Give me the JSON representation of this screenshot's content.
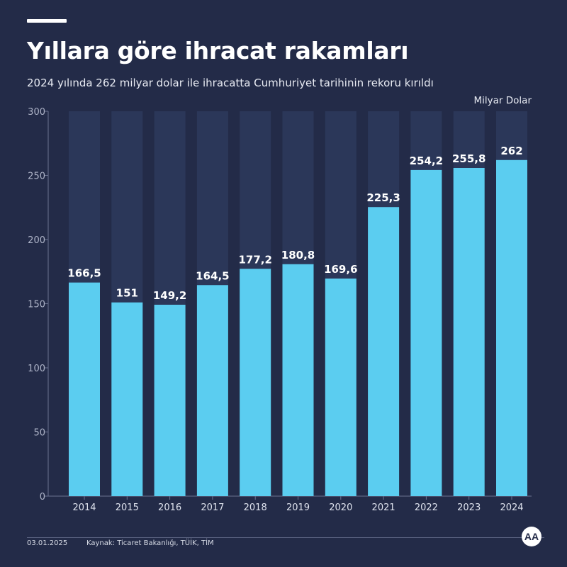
{
  "header": {
    "title": "Yıllara göre ihracat rakamları",
    "subtitle": "2024 yılında 262 milyar dolar ile ihracatta Cumhuriyet tarihinin rekoru kırıldı",
    "unit": "Milyar Dolar"
  },
  "footer": {
    "date": "03.01.2025",
    "source": "Kaynak: Ticaret Bakanlığı, TÜİK, TİM",
    "logo_text": "AA"
  },
  "colors": {
    "background": "#232b48",
    "bar": "#5bcdf0",
    "column_band": "#2b3759"
  },
  "chart_data": {
    "type": "bar",
    "categories": [
      "2014",
      "2015",
      "2016",
      "2017",
      "2018",
      "2019",
      "2020",
      "2021",
      "2022",
      "2023",
      "2024"
    ],
    "values": [
      166.5,
      151,
      149.2,
      164.5,
      177.2,
      180.8,
      169.6,
      225.3,
      254.2,
      255.8,
      262
    ],
    "value_labels": [
      "166,5",
      "151",
      "149,2",
      "164,5",
      "177,2",
      "180,8",
      "169,6",
      "225,3",
      "254,2",
      "255,8",
      "262"
    ],
    "y_ticks": [
      0,
      50,
      100,
      150,
      200,
      250,
      300
    ],
    "ylim": [
      0,
      300
    ],
    "ylabel": "Milyar Dolar",
    "xlabel": "",
    "grid": false
  }
}
